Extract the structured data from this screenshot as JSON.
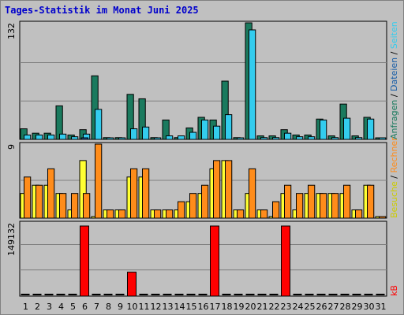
{
  "chart_data": {
    "type": "bar",
    "title": "Tages-Statistik im Monat Juni 2025",
    "categories": [
      "1",
      "2",
      "3",
      "4",
      "5",
      "6",
      "7",
      "8",
      "9",
      "10",
      "11",
      "12",
      "13",
      "14",
      "15",
      "16",
      "17",
      "18",
      "19",
      "20",
      "21",
      "22",
      "23",
      "24",
      "25",
      "26",
      "27",
      "28",
      "29",
      "30",
      "31"
    ],
    "weekend_days": [
      1,
      7,
      8,
      14,
      15,
      21,
      22,
      28,
      29
    ],
    "panels": [
      {
        "name": "requests",
        "ymax_label": "132",
        "ylim": [
          0,
          132
        ],
        "series": [
          {
            "name": "Anfragen",
            "color": "#1a7a5e",
            "values": [
              12,
              7,
              7,
              38,
              5,
              11,
              72,
              2,
              2,
              51,
              46,
              2,
              22,
              2,
              13,
              25,
              22,
              66,
              2,
              132,
              4,
              4,
              11,
              5,
              5,
              23,
              4,
              40,
              4,
              25,
              0
            ]
          },
          {
            "name": "Dateien",
            "color": "#33ccee",
            "values": [
              5,
              5,
              5,
              6,
              3,
              6,
              34,
              1,
              1,
              12,
              14,
              1,
              4,
              4,
              8,
              22,
              15,
              28,
              1,
              124,
              2,
              2,
              7,
              3,
              3,
              22,
              2,
              24,
              2,
              23,
              0
            ]
          },
          {
            "name": "Seiten",
            "color": "#1a5fa8",
            "values": [
              0,
              0,
              0,
              0,
              0,
              1,
              0,
              0,
              0,
              0,
              0,
              0,
              0,
              0,
              0,
              0,
              0,
              0,
              0,
              0,
              0,
              0,
              0,
              0,
              0,
              0,
              0,
              0,
              0,
              0,
              0
            ]
          }
        ],
        "right_labels": [
          {
            "text": "Anfragen",
            "color": "#1a7a5e"
          },
          {
            "text": "Dateien",
            "color": "#1a5fa8"
          },
          {
            "text": "Seiten",
            "color": "#33ccee"
          }
        ]
      },
      {
        "name": "visits",
        "ymax_label": "9",
        "ylim": [
          0,
          9
        ],
        "series": [
          {
            "name": "Besuche",
            "color": "#ffff33",
            "values": [
              3,
              4,
              4,
              3,
              1,
              7,
              0,
              1,
              1,
              5,
              5,
              1,
              1,
              1,
              2,
              3,
              6,
              7,
              1,
              3,
              1,
              0,
              3,
              1,
              3,
              3,
              3,
              3,
              1,
              4,
              0
            ]
          },
          {
            "name": "Rechner",
            "color": "#ff8c1a",
            "values": [
              5,
              4,
              6,
              3,
              3,
              3,
              9,
              1,
              1,
              6,
              6,
              1,
              1,
              2,
              3,
              4,
              7,
              7,
              1,
              6,
              1,
              2,
              4,
              3,
              4,
              3,
              3,
              4,
              1,
              4,
              0
            ]
          }
        ],
        "right_labels": [
          {
            "text": "Besuche",
            "color": "#cccc00"
          },
          {
            "text": "Rechner",
            "color": "#ff8c1a"
          }
        ]
      },
      {
        "name": "kb",
        "ymax_label": "149132",
        "ylim": [
          0,
          149132
        ],
        "series": [
          {
            "name": "kB",
            "color": "#ff0000",
            "values": [
              0,
              0,
              0,
              0,
              0,
              149132,
              0,
              0,
              0,
              51000,
              0,
              0,
              0,
              0,
              0,
              0,
              149132,
              0,
              0,
              0,
              0,
              0,
              149132,
              0,
              0,
              0,
              0,
              0,
              0,
              0,
              0
            ]
          }
        ],
        "right_labels": [
          {
            "text": "kB",
            "color": "#ff0000"
          }
        ]
      }
    ],
    "colors": {
      "weekday_label": "#000066",
      "weekend_label": "#2e8b57",
      "panel_bg": "#c0c0c0",
      "grid": "#808080"
    }
  }
}
